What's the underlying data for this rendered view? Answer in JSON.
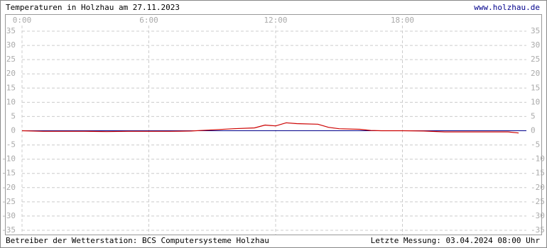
{
  "chart_data": {
    "type": "line",
    "title": "Temperaturen in Holzhau am 27.11.2023",
    "source": "www.holzhau.de",
    "operator": "Betreiber der Wetterstation: BCS Computersysteme Holzhau",
    "last_measurement": "Letzte Messung: 03.04.2024 08:00 Uhr",
    "x": [
      0,
      1,
      2,
      3,
      4,
      5,
      6,
      7,
      8,
      9,
      10,
      11,
      11.5,
      12,
      12.5,
      13,
      14,
      14.5,
      15,
      16,
      16.5,
      17,
      18,
      19,
      20,
      21,
      22,
      23,
      23.5
    ],
    "values": [
      0,
      -0.2,
      -0.2,
      -0.2,
      -0.3,
      -0.2,
      -0.2,
      -0.2,
      -0.1,
      0.3,
      0.7,
      1.0,
      2.0,
      1.7,
      2.8,
      2.5,
      2.3,
      1.2,
      0.7,
      0.5,
      0.1,
      0,
      0,
      -0.1,
      -0.4,
      -0.4,
      -0.4,
      -0.4,
      -0.8
    ],
    "color": "#cc0000",
    "zero_line_color": "#00008b",
    "xlim": [
      0,
      24
    ],
    "xticks": [
      {
        "value": 0,
        "label": "0:00"
      },
      {
        "value": 6,
        "label": "6:00"
      },
      {
        "value": 12,
        "label": "12:00"
      },
      {
        "value": 18,
        "label": "18:00"
      }
    ],
    "ylim": [
      -35,
      35
    ],
    "yticks": [
      35,
      30,
      25,
      20,
      15,
      10,
      5,
      0,
      -5,
      -10,
      -15,
      -20,
      -25,
      -30,
      -35
    ],
    "grid": true
  }
}
